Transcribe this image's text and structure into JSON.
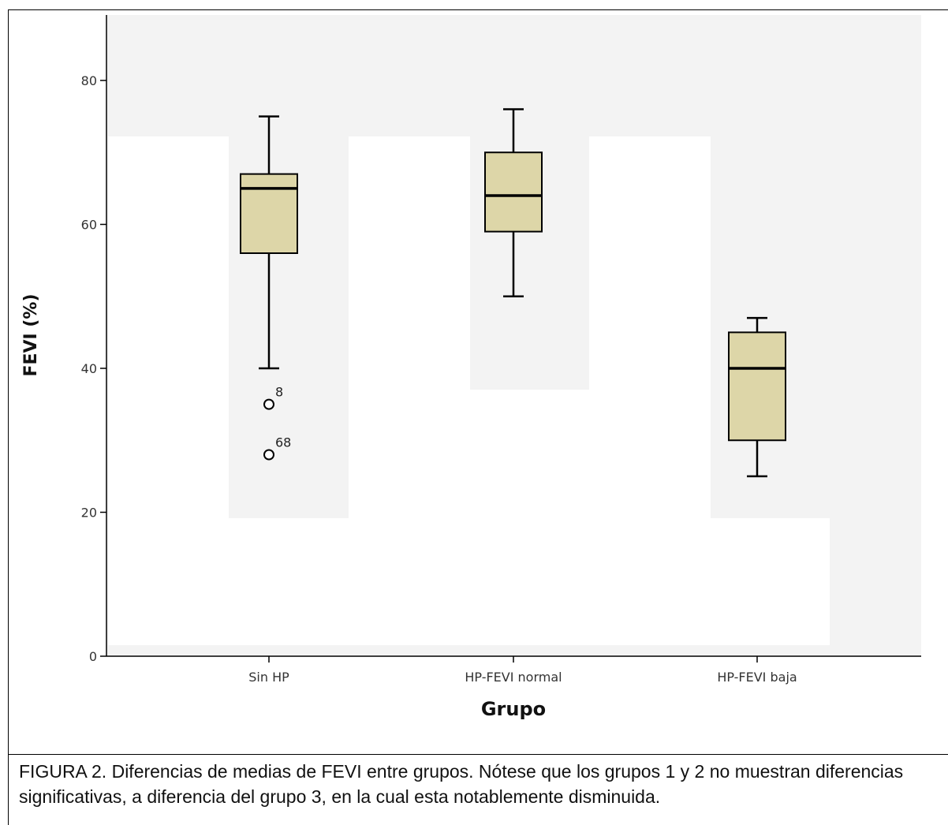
{
  "chart_data": {
    "type": "boxplot",
    "xlabel": "Grupo",
    "ylabel": "FEVI (%)",
    "ylim": [
      0,
      88
    ],
    "yticks": [
      0,
      20,
      40,
      60,
      80
    ],
    "categories": [
      "Sin HP",
      "HP-FEVI normal",
      "HP-FEVI baja"
    ],
    "boxes": [
      {
        "category": "Sin HP",
        "whisker_low": 40,
        "q1": 56,
        "median": 65,
        "q3": 67,
        "whisker_high": 75,
        "outliers": [
          {
            "value": 35,
            "label": "8"
          },
          {
            "value": 28,
            "label": "68"
          }
        ]
      },
      {
        "category": "HP-FEVI normal",
        "whisker_low": 50,
        "q1": 59,
        "median": 64,
        "q3": 70,
        "whisker_high": 76,
        "outliers": []
      },
      {
        "category": "HP-FEVI baja",
        "whisker_low": 25,
        "q1": 30,
        "median": 40,
        "q3": 45,
        "whisker_high": 47,
        "outliers": []
      }
    ],
    "box_color": "#ddd6a8",
    "background_color": "#f3f3f3"
  },
  "caption": "FIGURA 2. Diferencias de medias de FEVI entre grupos. Nótese que los grupos 1 y 2 no muestran diferencias significativas, a diferencia del grupo 3, en la cual esta notablemente disminuida."
}
